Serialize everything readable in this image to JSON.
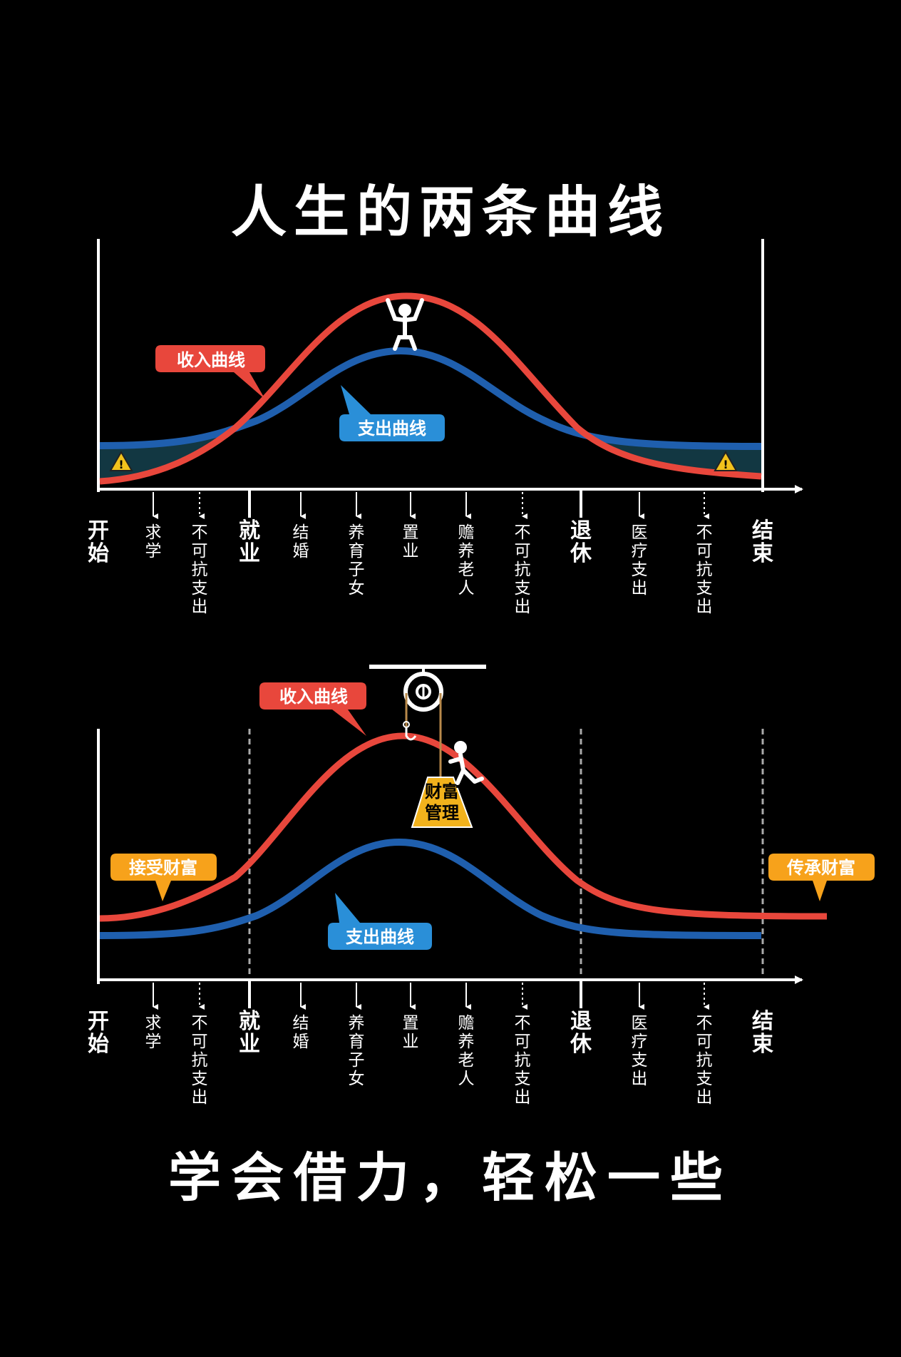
{
  "title": "人生的两条曲线",
  "slogan": "学会借力，轻松一些",
  "colors": {
    "background": "#000000",
    "income": "#e8473c",
    "expense": "#1f5fae",
    "gap_fill": "#123742",
    "income_label": "#e8473c",
    "expense_label": "#2a8fd8",
    "wealth_label": "#f7a21b",
    "weight": "#f2b21c",
    "axis": "#ffffff"
  },
  "timeline": [
    {
      "label": "开始",
      "major": true,
      "dotted": false
    },
    {
      "label": "求学",
      "major": false,
      "dotted": false
    },
    {
      "label": "不可抗支出",
      "major": false,
      "dotted": true
    },
    {
      "label": "就业",
      "major": true,
      "dotted": false
    },
    {
      "label": "结婚",
      "major": false,
      "dotted": false
    },
    {
      "label": "养育子女",
      "major": false,
      "dotted": false
    },
    {
      "label": "置业",
      "major": false,
      "dotted": false
    },
    {
      "label": "赡养老人",
      "major": false,
      "dotted": false
    },
    {
      "label": "不可抗支出",
      "major": false,
      "dotted": true
    },
    {
      "label": "退休",
      "major": true,
      "dotted": false
    },
    {
      "label": "医疗支出",
      "major": false,
      "dotted": false
    },
    {
      "label": "不可抗支出",
      "major": false,
      "dotted": true
    },
    {
      "label": "结束",
      "major": true,
      "dotted": false
    }
  ],
  "panel1": {
    "income_label": "收入曲线",
    "expense_label": "支出曲线",
    "warning_icon": "warning-triangle-icon",
    "figure_icon": "stick-figure-lifting-icon"
  },
  "panel2": {
    "income_label": "收入曲线",
    "expense_label": "支出曲线",
    "receive_label": "接受财富",
    "inherit_label": "传承财富",
    "weight_label_line1": "财富",
    "weight_label_line2": "管理",
    "pulley_icon": "pulley-icon",
    "figure_icon": "stick-figure-climbing-icon"
  }
}
